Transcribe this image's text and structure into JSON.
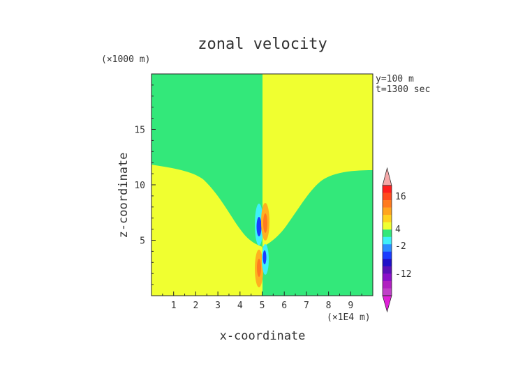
{
  "chart_data": {
    "type": "heatmap",
    "title": "zonal velocity",
    "xlabel": "x-coordinate",
    "ylabel": "z-coordinate",
    "x_scale_note": "(×1E4 m)",
    "y_scale_note": "(×1000 m)",
    "info": [
      "y=100 m",
      "t=1300 sec"
    ],
    "x_ticks": [
      "1",
      "2",
      "3",
      "4",
      "5",
      "6",
      "7",
      "8",
      "9"
    ],
    "y_ticks": [
      "5",
      "10",
      "15"
    ],
    "xlim": [
      0,
      10
    ],
    "ylim": [
      0,
      20
    ],
    "colorbar": {
      "labels": [
        "16",
        "4",
        "-2",
        "-12"
      ]
    },
    "regions": [
      {
        "name": "upper-left",
        "sign": "negative"
      },
      {
        "name": "upper-right",
        "sign": "positive"
      },
      {
        "name": "lower-left",
        "sign": "positive"
      },
      {
        "name": "lower-right",
        "sign": "negative"
      }
    ]
  },
  "colors": {
    "positive_field": "#f0ff30",
    "negative_field": "#33e87a",
    "text": "#333333"
  }
}
